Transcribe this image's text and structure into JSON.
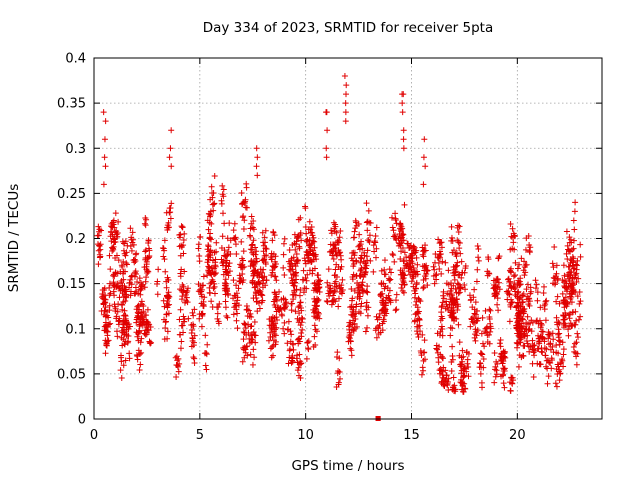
{
  "chart_data": {
    "type": "scatter",
    "title": "Day 334 of 2023, SRMTID for receiver 5pta",
    "xlabel": "GPS time / hours",
    "ylabel": "SRMTID / TECUs",
    "xlim": [
      0,
      24
    ],
    "ylim": [
      0,
      0.4
    ],
    "x_ticks": [
      0,
      5,
      10,
      15,
      20
    ],
    "x_tick_labels": [
      "0",
      "5",
      "10",
      "15",
      "20"
    ],
    "y_ticks": [
      0,
      0.05,
      0.1,
      0.15,
      0.2,
      0.25,
      0.3,
      0.35,
      0.4
    ],
    "y_tick_labels": [
      "0",
      "0.05",
      "0.1",
      "0.15",
      "0.2",
      "0.25",
      "0.3",
      "0.35",
      "0.4"
    ],
    "grid": true,
    "marker": "+",
    "color": "#e00000",
    "series": [
      {
        "name": "SRMTID",
        "trend_x": [
          0,
          0.5,
          1,
          1.5,
          2,
          2.5,
          3,
          3.5,
          4,
          4.5,
          5,
          5.5,
          6,
          6.5,
          7,
          7.5,
          8,
          8.5,
          9,
          9.5,
          10,
          10.5,
          11,
          11.5,
          12,
          12.5,
          13,
          13.5,
          14,
          14.5,
          15,
          15.5,
          16,
          16.5,
          17,
          17.5,
          18,
          18.5,
          19,
          19.5,
          20,
          20.5,
          21,
          21.5,
          22,
          22.5,
          23
        ],
        "trend_y": [
          0.15,
          0.14,
          0.15,
          0.14,
          0.15,
          0.16,
          0.17,
          0.16,
          0.14,
          0.13,
          0.16,
          0.17,
          0.16,
          0.15,
          0.15,
          0.14,
          0.16,
          0.15,
          0.14,
          0.14,
          0.15,
          0.15,
          0.16,
          0.15,
          0.15,
          0.14,
          0.14,
          0.13,
          0.15,
          0.17,
          0.15,
          0.13,
          0.12,
          0.11,
          0.11,
          0.1,
          0.08,
          0.09,
          0.12,
          0.11,
          0.1,
          0.12,
          0.12,
          0.13,
          0.12,
          0.12,
          0.16
        ],
        "spread": 0.05,
        "point_count": 2600,
        "bursts": [
          {
            "x": 0.5,
            "y": [
              0.34,
              0.33,
              0.31,
              0.29,
              0.28,
              0.26
            ]
          },
          {
            "x": 3.6,
            "y": [
              0.32,
              0.3,
              0.29,
              0.28
            ]
          },
          {
            "x": 7.7,
            "y": [
              0.3,
              0.29,
              0.28,
              0.27
            ]
          },
          {
            "x": 11.0,
            "y": [
              0.34,
              0.34,
              0.32,
              0.3,
              0.29
            ]
          },
          {
            "x": 11.9,
            "y": [
              0.38,
              0.37,
              0.36,
              0.35,
              0.34,
              0.33
            ]
          },
          {
            "x": 14.6,
            "y": [
              0.36,
              0.36,
              0.35,
              0.34,
              0.32,
              0.31,
              0.3
            ]
          },
          {
            "x": 15.6,
            "y": [
              0.31,
              0.29,
              0.28,
              0.26
            ]
          },
          {
            "x": 18.3,
            "y": [
              0.04,
              0.035,
              0.05
            ]
          },
          {
            "x": 22.7,
            "y": [
              0.24,
              0.23,
              0.22,
              0.21
            ]
          }
        ],
        "zero_points_x": [
          13.4,
          13.4,
          13.45
        ]
      }
    ]
  }
}
